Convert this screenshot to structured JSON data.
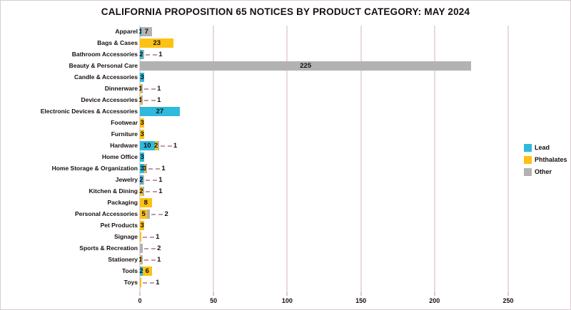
{
  "title": "CALIFORNIA PROPOSITION 65 NOTICES BY PRODUCT CATEGORY: MAY 2024",
  "colors": {
    "lead": "#2fb9dc",
    "phthalates": "#fdc113",
    "other": "#b2b2b2",
    "gridline": "#e8d9e1",
    "leader": "#c795ad",
    "text": "#16100e"
  },
  "legend": [
    {
      "label": "Lead",
      "color_key": "lead"
    },
    {
      "label": "Phthalates",
      "color_key": "phthalates"
    },
    {
      "label": "Other",
      "color_key": "other"
    }
  ],
  "x_axis": {
    "ticks": [
      0,
      50,
      100,
      150,
      200,
      250
    ],
    "max": 278
  },
  "chart_data": {
    "type": "bar",
    "orientation": "horizontal",
    "stacked": true,
    "title": "CALIFORNIA PROPOSITION 65 NOTICES BY PRODUCT CATEGORY: MAY 2024",
    "xlabel": "",
    "ylabel": "",
    "xlim": [
      0,
      278
    ],
    "grid": true,
    "legend_position": "right",
    "categories": [
      "Apparel",
      "Bags & Cases",
      "Bathroom Accessories",
      "Beauty & Personal Care",
      "Candle & Accessories",
      "Dinnerware",
      "Device Accessories",
      "Electronic Devices & Accessories",
      "Footwear",
      "Furniture",
      "Hardware",
      "Home Office",
      "Home Storage & Organization",
      "Jewelry",
      "Kitchen & Dining",
      "Packaging",
      "Personal Accessories",
      "Pet Products",
      "Signage",
      "Sports & Recreation",
      "Stationery",
      "Tools",
      "Toys"
    ],
    "series": [
      {
        "name": "Lead",
        "color_key": "lead",
        "values": [
          1,
          0,
          2,
          0,
          3,
          0,
          0,
          27,
          0,
          0,
          10,
          3,
          3,
          2,
          0,
          0,
          0,
          0,
          0,
          0,
          0,
          2,
          0
        ]
      },
      {
        "name": "Phthalates",
        "color_key": "phthalates",
        "values": [
          0,
          23,
          0,
          0,
          0,
          1,
          1,
          0,
          3,
          3,
          2,
          0,
          1,
          0,
          2,
          8,
          5,
          3,
          1,
          0,
          1,
          6,
          1
        ]
      },
      {
        "name": "Other",
        "color_key": "other",
        "values": [
          7,
          0,
          1,
          225,
          0,
          1,
          1,
          0,
          0,
          0,
          1,
          0,
          1,
          1,
          1,
          0,
          2,
          0,
          0,
          2,
          1,
          0,
          0
        ]
      }
    ]
  }
}
